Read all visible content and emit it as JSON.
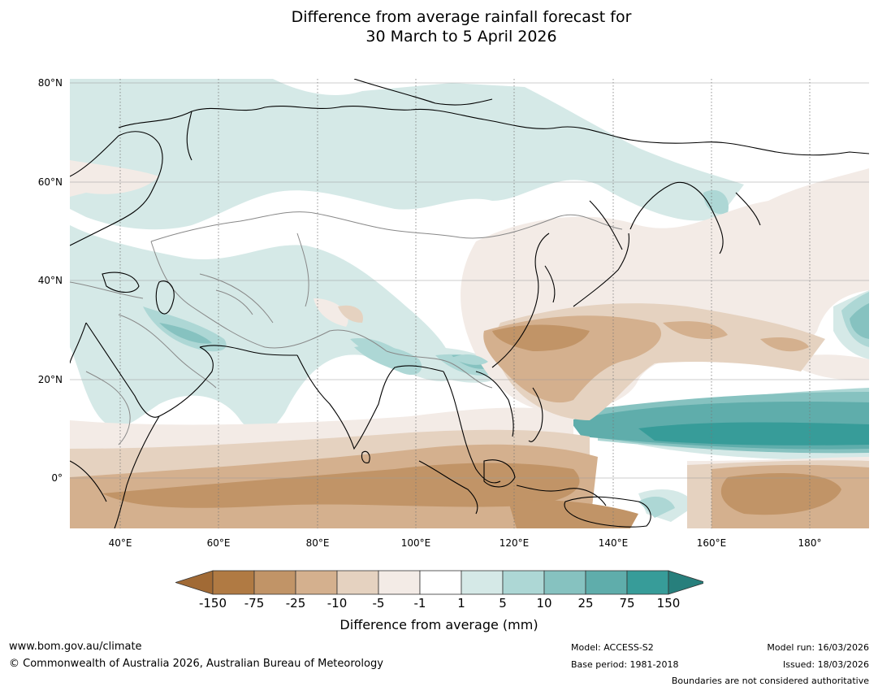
{
  "title": {
    "line1": "Difference from average rainfall forecast for",
    "line2": "30 March to 5 April 2026"
  },
  "axes": {
    "lat_labels": [
      "80°N",
      "60°N",
      "40°N",
      "20°N",
      "0°"
    ],
    "lon_labels": [
      "40°E",
      "60°E",
      "80°E",
      "100°E",
      "120°E",
      "140°E",
      "160°E",
      "180°"
    ]
  },
  "colorbar": {
    "ticks": [
      "-150",
      "-75",
      "-25",
      "-10",
      "-5",
      "-1",
      "1",
      "5",
      "10",
      "25",
      "75",
      "150"
    ],
    "colors": [
      "#a16a35",
      "#b07a43",
      "#c19467",
      "#d4b08e",
      "#e5d2c0",
      "#f3ebe6",
      "#ffffff",
      "#d5e9e7",
      "#add7d5",
      "#86c2c0",
      "#5fadab",
      "#379c99",
      "#277f7c"
    ],
    "label": "Difference from average (mm)"
  },
  "footer": {
    "website": "www.bom.gov.au/climate",
    "copyright": "© Commonwealth of Australia 2026, Australian Bureau of Meteorology",
    "model": "Model: ACCESS-S2",
    "base_period": "Base period: 1981-2018",
    "model_run": "Model run: 16/03/2026",
    "issued": "Issued: 18/03/2026",
    "disclaimer": "Boundaries are not considered authoritative"
  }
}
